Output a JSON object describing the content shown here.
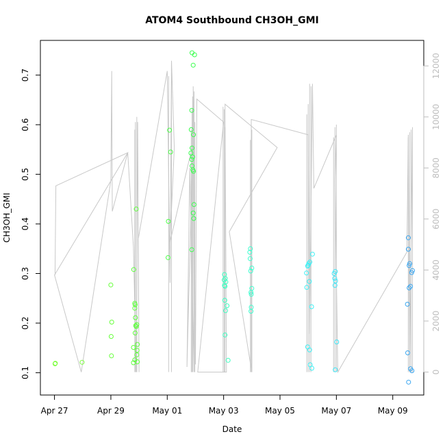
{
  "chart_data": {
    "type": "scatter",
    "title": "ATOM4 Southbound CH3OH_GMI",
    "xlabel": "Date",
    "ylabel": "CH3OH_GMI",
    "x_ticks": [
      "Apr 27",
      "Apr 29",
      "May 01",
      "May 03",
      "May 05",
      "May 07",
      "May 09"
    ],
    "x_tick_days": [
      0,
      2,
      4,
      6,
      8,
      10,
      12
    ],
    "xlim_days": [
      -0.5,
      13.1
    ],
    "y_ticks": [
      "0.1",
      "0.2",
      "0.3",
      "0.4",
      "0.5",
      "0.6",
      "0.7"
    ],
    "ylim": [
      0.055,
      0.77
    ],
    "y2_ticks": [
      "0",
      "2000",
      "4000",
      "6000",
      "8000",
      "10000",
      "12000"
    ],
    "y2lim": [
      -900,
      13000
    ],
    "grid": false,
    "legend": "none",
    "point_style": "open circles, color gradient green to blue by date",
    "line_style": "gray line, right axis (altitude)",
    "points": [
      {
        "x": 0.02,
        "y": 0.118,
        "c": "#7cff3c"
      },
      {
        "x": 0.03,
        "y": 0.119,
        "c": "#7cff3c"
      },
      {
        "x": 0.98,
        "y": 0.121,
        "c": "#7cff3c"
      },
      {
        "x": 2.0,
        "y": 0.277,
        "c": "#66ff3a"
      },
      {
        "x": 2.03,
        "y": 0.202,
        "c": "#66ff3a"
      },
      {
        "x": 2.01,
        "y": 0.173,
        "c": "#66ff3a"
      },
      {
        "x": 2.02,
        "y": 0.134,
        "c": "#66ff3a"
      },
      {
        "x": 2.81,
        "y": 0.308,
        "c": "#5cff3b"
      },
      {
        "x": 2.8,
        "y": 0.151,
        "c": "#5cff3b"
      },
      {
        "x": 2.8,
        "y": 0.12,
        "c": "#5cff3b"
      },
      {
        "x": 2.85,
        "y": 0.24,
        "c": "#5cff3b"
      },
      {
        "x": 2.86,
        "y": 0.237,
        "c": "#5cff3b"
      },
      {
        "x": 2.87,
        "y": 0.211,
        "c": "#5cff3b"
      },
      {
        "x": 2.85,
        "y": 0.23,
        "c": "#5cff3b"
      },
      {
        "x": 2.88,
        "y": 0.195,
        "c": "#5cff3b"
      },
      {
        "x": 2.9,
        "y": 0.193,
        "c": "#5cff3b"
      },
      {
        "x": 2.92,
        "y": 0.197,
        "c": "#5cff3b"
      },
      {
        "x": 2.86,
        "y": 0.18,
        "c": "#5cff3b"
      },
      {
        "x": 2.94,
        "y": 0.157,
        "c": "#5cff3b"
      },
      {
        "x": 2.93,
        "y": 0.145,
        "c": "#5cff3b"
      },
      {
        "x": 2.92,
        "y": 0.136,
        "c": "#5cff3b"
      },
      {
        "x": 2.85,
        "y": 0.126,
        "c": "#5cff3b"
      },
      {
        "x": 2.94,
        "y": 0.122,
        "c": "#5cff3b"
      },
      {
        "x": 2.9,
        "y": 0.43,
        "c": "#5cff3b"
      },
      {
        "x": 4.04,
        "y": 0.405,
        "c": "#4cff48"
      },
      {
        "x": 4.03,
        "y": 0.332,
        "c": "#4cff48"
      },
      {
        "x": 4.08,
        "y": 0.589,
        "c": "#4cff48"
      },
      {
        "x": 4.12,
        "y": 0.545,
        "c": "#4cff48"
      },
      {
        "x": 4.88,
        "y": 0.745,
        "c": "#38ff4d"
      },
      {
        "x": 4.97,
        "y": 0.741,
        "c": "#38ff4d"
      },
      {
        "x": 4.92,
        "y": 0.72,
        "c": "#38ff4d"
      },
      {
        "x": 4.87,
        "y": 0.629,
        "c": "#38ff4d"
      },
      {
        "x": 4.85,
        "y": 0.59,
        "c": "#38ff4d"
      },
      {
        "x": 4.93,
        "y": 0.58,
        "c": "#38ff4d"
      },
      {
        "x": 4.88,
        "y": 0.553,
        "c": "#38ff4d"
      },
      {
        "x": 4.84,
        "y": 0.543,
        "c": "#38ff4d"
      },
      {
        "x": 4.9,
        "y": 0.535,
        "c": "#38ff4d"
      },
      {
        "x": 4.87,
        "y": 0.53,
        "c": "#38ff4d"
      },
      {
        "x": 4.88,
        "y": 0.517,
        "c": "#38ff4d"
      },
      {
        "x": 4.91,
        "y": 0.509,
        "c": "#38ff4d"
      },
      {
        "x": 4.93,
        "y": 0.506,
        "c": "#38ff4d"
      },
      {
        "x": 4.95,
        "y": 0.439,
        "c": "#38ff4d"
      },
      {
        "x": 4.92,
        "y": 0.422,
        "c": "#38ff4d"
      },
      {
        "x": 4.94,
        "y": 0.411,
        "c": "#38ff4d"
      },
      {
        "x": 4.87,
        "y": 0.348,
        "c": "#38ff4d"
      },
      {
        "x": 6.03,
        "y": 0.298,
        "c": "#3cffc0"
      },
      {
        "x": 6.06,
        "y": 0.29,
        "c": "#3cffc0"
      },
      {
        "x": 6.02,
        "y": 0.287,
        "c": "#3cffc0"
      },
      {
        "x": 6.08,
        "y": 0.283,
        "c": "#3cffc0"
      },
      {
        "x": 6.03,
        "y": 0.276,
        "c": "#3cffc0"
      },
      {
        "x": 6.05,
        "y": 0.274,
        "c": "#3cffc0"
      },
      {
        "x": 6.04,
        "y": 0.246,
        "c": "#3cffc0"
      },
      {
        "x": 6.12,
        "y": 0.235,
        "c": "#3cffc0"
      },
      {
        "x": 6.07,
        "y": 0.225,
        "c": "#3cffc0"
      },
      {
        "x": 6.05,
        "y": 0.176,
        "c": "#3cffc0"
      },
      {
        "x": 6.16,
        "y": 0.125,
        "c": "#3cffc0"
      },
      {
        "x": 6.95,
        "y": 0.35,
        "c": "#3cffd0"
      },
      {
        "x": 6.93,
        "y": 0.343,
        "c": "#3cffd0"
      },
      {
        "x": 6.94,
        "y": 0.33,
        "c": "#3cffd0"
      },
      {
        "x": 7.0,
        "y": 0.311,
        "c": "#3cffd0"
      },
      {
        "x": 6.96,
        "y": 0.305,
        "c": "#3cffd0"
      },
      {
        "x": 7.0,
        "y": 0.27,
        "c": "#3cffd0"
      },
      {
        "x": 6.97,
        "y": 0.262,
        "c": "#3cffd0"
      },
      {
        "x": 6.98,
        "y": 0.258,
        "c": "#3cffd0"
      },
      {
        "x": 6.98,
        "y": 0.232,
        "c": "#3cffd0"
      },
      {
        "x": 6.97,
        "y": 0.224,
        "c": "#3cffd0"
      },
      {
        "x": 8.94,
        "y": 0.301,
        "c": "#3cf0f5"
      },
      {
        "x": 8.98,
        "y": 0.315,
        "c": "#3cf0f5"
      },
      {
        "x": 9.02,
        "y": 0.32,
        "c": "#3cf0f5"
      },
      {
        "x": 9.06,
        "y": 0.323,
        "c": "#3cf0f5"
      },
      {
        "x": 9.0,
        "y": 0.317,
        "c": "#3cf0f5"
      },
      {
        "x": 9.15,
        "y": 0.339,
        "c": "#3cf0f5"
      },
      {
        "x": 9.04,
        "y": 0.284,
        "c": "#3cf0f5"
      },
      {
        "x": 8.95,
        "y": 0.272,
        "c": "#3cf0f5"
      },
      {
        "x": 9.12,
        "y": 0.233,
        "c": "#3cf0f5"
      },
      {
        "x": 8.98,
        "y": 0.152,
        "c": "#3cf0f5"
      },
      {
        "x": 9.05,
        "y": 0.146,
        "c": "#3cf0f5"
      },
      {
        "x": 9.07,
        "y": 0.116,
        "c": "#3cf0f5"
      },
      {
        "x": 9.13,
        "y": 0.109,
        "c": "#3cf0f5"
      },
      {
        "x": 9.92,
        "y": 0.3,
        "c": "#3ce6f7"
      },
      {
        "x": 9.96,
        "y": 0.304,
        "c": "#3ce6f7"
      },
      {
        "x": 9.94,
        "y": 0.29,
        "c": "#3ce6f7"
      },
      {
        "x": 9.97,
        "y": 0.285,
        "c": "#3ce6f7"
      },
      {
        "x": 9.95,
        "y": 0.276,
        "c": "#3ce6f7"
      },
      {
        "x": 10.01,
        "y": 0.162,
        "c": "#3ce6f7"
      },
      {
        "x": 9.96,
        "y": 0.106,
        "c": "#3ce6f7"
      },
      {
        "x": 12.55,
        "y": 0.372,
        "c": "#3aa6f0"
      },
      {
        "x": 12.55,
        "y": 0.349,
        "c": "#3aa6f0"
      },
      {
        "x": 12.6,
        "y": 0.32,
        "c": "#3aa6f0"
      },
      {
        "x": 12.58,
        "y": 0.316,
        "c": "#3aa6f0"
      },
      {
        "x": 12.7,
        "y": 0.306,
        "c": "#3aa6f0"
      },
      {
        "x": 12.67,
        "y": 0.302,
        "c": "#3aa6f0"
      },
      {
        "x": 12.63,
        "y": 0.274,
        "c": "#3aa6f0"
      },
      {
        "x": 12.58,
        "y": 0.271,
        "c": "#3aa6f0"
      },
      {
        "x": 12.52,
        "y": 0.238,
        "c": "#3aa6f0"
      },
      {
        "x": 12.53,
        "y": 0.14,
        "c": "#3aa6f0"
      },
      {
        "x": 12.63,
        "y": 0.108,
        "c": "#3aa6f0"
      },
      {
        "x": 12.68,
        "y": 0.104,
        "c": "#3aa6f0"
      },
      {
        "x": 12.56,
        "y": 0.081,
        "c": "#3aa6f0"
      }
    ],
    "altitude_line": [
      [
        0.02,
        3800
      ],
      [
        0.05,
        7300
      ],
      [
        2.6,
        8600
      ],
      [
        0.0,
        3800
      ],
      [
        0.95,
        0
      ],
      [
        2.0,
        7500
      ],
      [
        2.03,
        11800
      ],
      [
        2.05,
        6300
      ],
      [
        2.6,
        8600
      ],
      [
        2.8,
        4900
      ],
      [
        2.9,
        0
      ],
      [
        2.95,
        9800
      ],
      [
        3.0,
        0
      ],
      [
        2.97,
        5200
      ],
      [
        4.0,
        11800
      ],
      [
        4.1,
        3500
      ],
      [
        4.15,
        12200
      ],
      [
        4.25,
        8800
      ],
      [
        4.1,
        5100
      ],
      [
        4.9,
        8900
      ],
      [
        4.7,
        200
      ],
      [
        4.8,
        8000
      ],
      [
        4.95,
        0
      ],
      [
        4.92,
        11200
      ],
      [
        5.0,
        300
      ],
      [
        5.05,
        10700
      ],
      [
        6.0,
        9800
      ],
      [
        5.08,
        0
      ],
      [
        6.1,
        0
      ],
      [
        6.05,
        10500
      ],
      [
        7.9,
        8800
      ],
      [
        6.2,
        5500
      ],
      [
        7.0,
        0
      ],
      [
        6.98,
        9900
      ],
      [
        9.0,
        9300
      ],
      [
        9.05,
        1500
      ],
      [
        9.15,
        11300
      ],
      [
        9.2,
        7200
      ],
      [
        10.0,
        9300
      ],
      [
        9.95,
        7500
      ],
      [
        10.05,
        0
      ],
      [
        12.5,
        4700
      ],
      [
        12.55,
        9300
      ],
      [
        12.6,
        0
      ],
      [
        12.7,
        9500
      ]
    ],
    "altitude_spikes": [
      {
        "x": 2.85,
        "top": 9500
      },
      {
        "x": 2.87,
        "top": 9800
      },
      {
        "x": 2.92,
        "top": 10000
      },
      {
        "x": 4.05,
        "top": 11600
      },
      {
        "x": 4.15,
        "top": 12100
      },
      {
        "x": 4.85,
        "top": 9500
      },
      {
        "x": 4.88,
        "top": 10300
      },
      {
        "x": 4.9,
        "top": 10800
      },
      {
        "x": 4.95,
        "top": 11000
      },
      {
        "x": 4.98,
        "top": 9800
      },
      {
        "x": 5.98,
        "top": 10400
      },
      {
        "x": 6.02,
        "top": 10300
      },
      {
        "x": 6.05,
        "top": 9600
      },
      {
        "x": 6.95,
        "top": 9100
      },
      {
        "x": 6.98,
        "top": 9200
      },
      {
        "x": 7.0,
        "top": 9500
      },
      {
        "x": 8.95,
        "top": 10100
      },
      {
        "x": 9.0,
        "top": 10500
      },
      {
        "x": 9.05,
        "top": 11300
      },
      {
        "x": 9.1,
        "top": 11200
      },
      {
        "x": 9.9,
        "top": 9200
      },
      {
        "x": 9.95,
        "top": 9600
      },
      {
        "x": 10.0,
        "top": 9700
      },
      {
        "x": 12.55,
        "top": 9200
      },
      {
        "x": 12.6,
        "top": 9400
      },
      {
        "x": 12.65,
        "top": 9500
      },
      {
        "x": 12.7,
        "top": 9600
      }
    ]
  }
}
